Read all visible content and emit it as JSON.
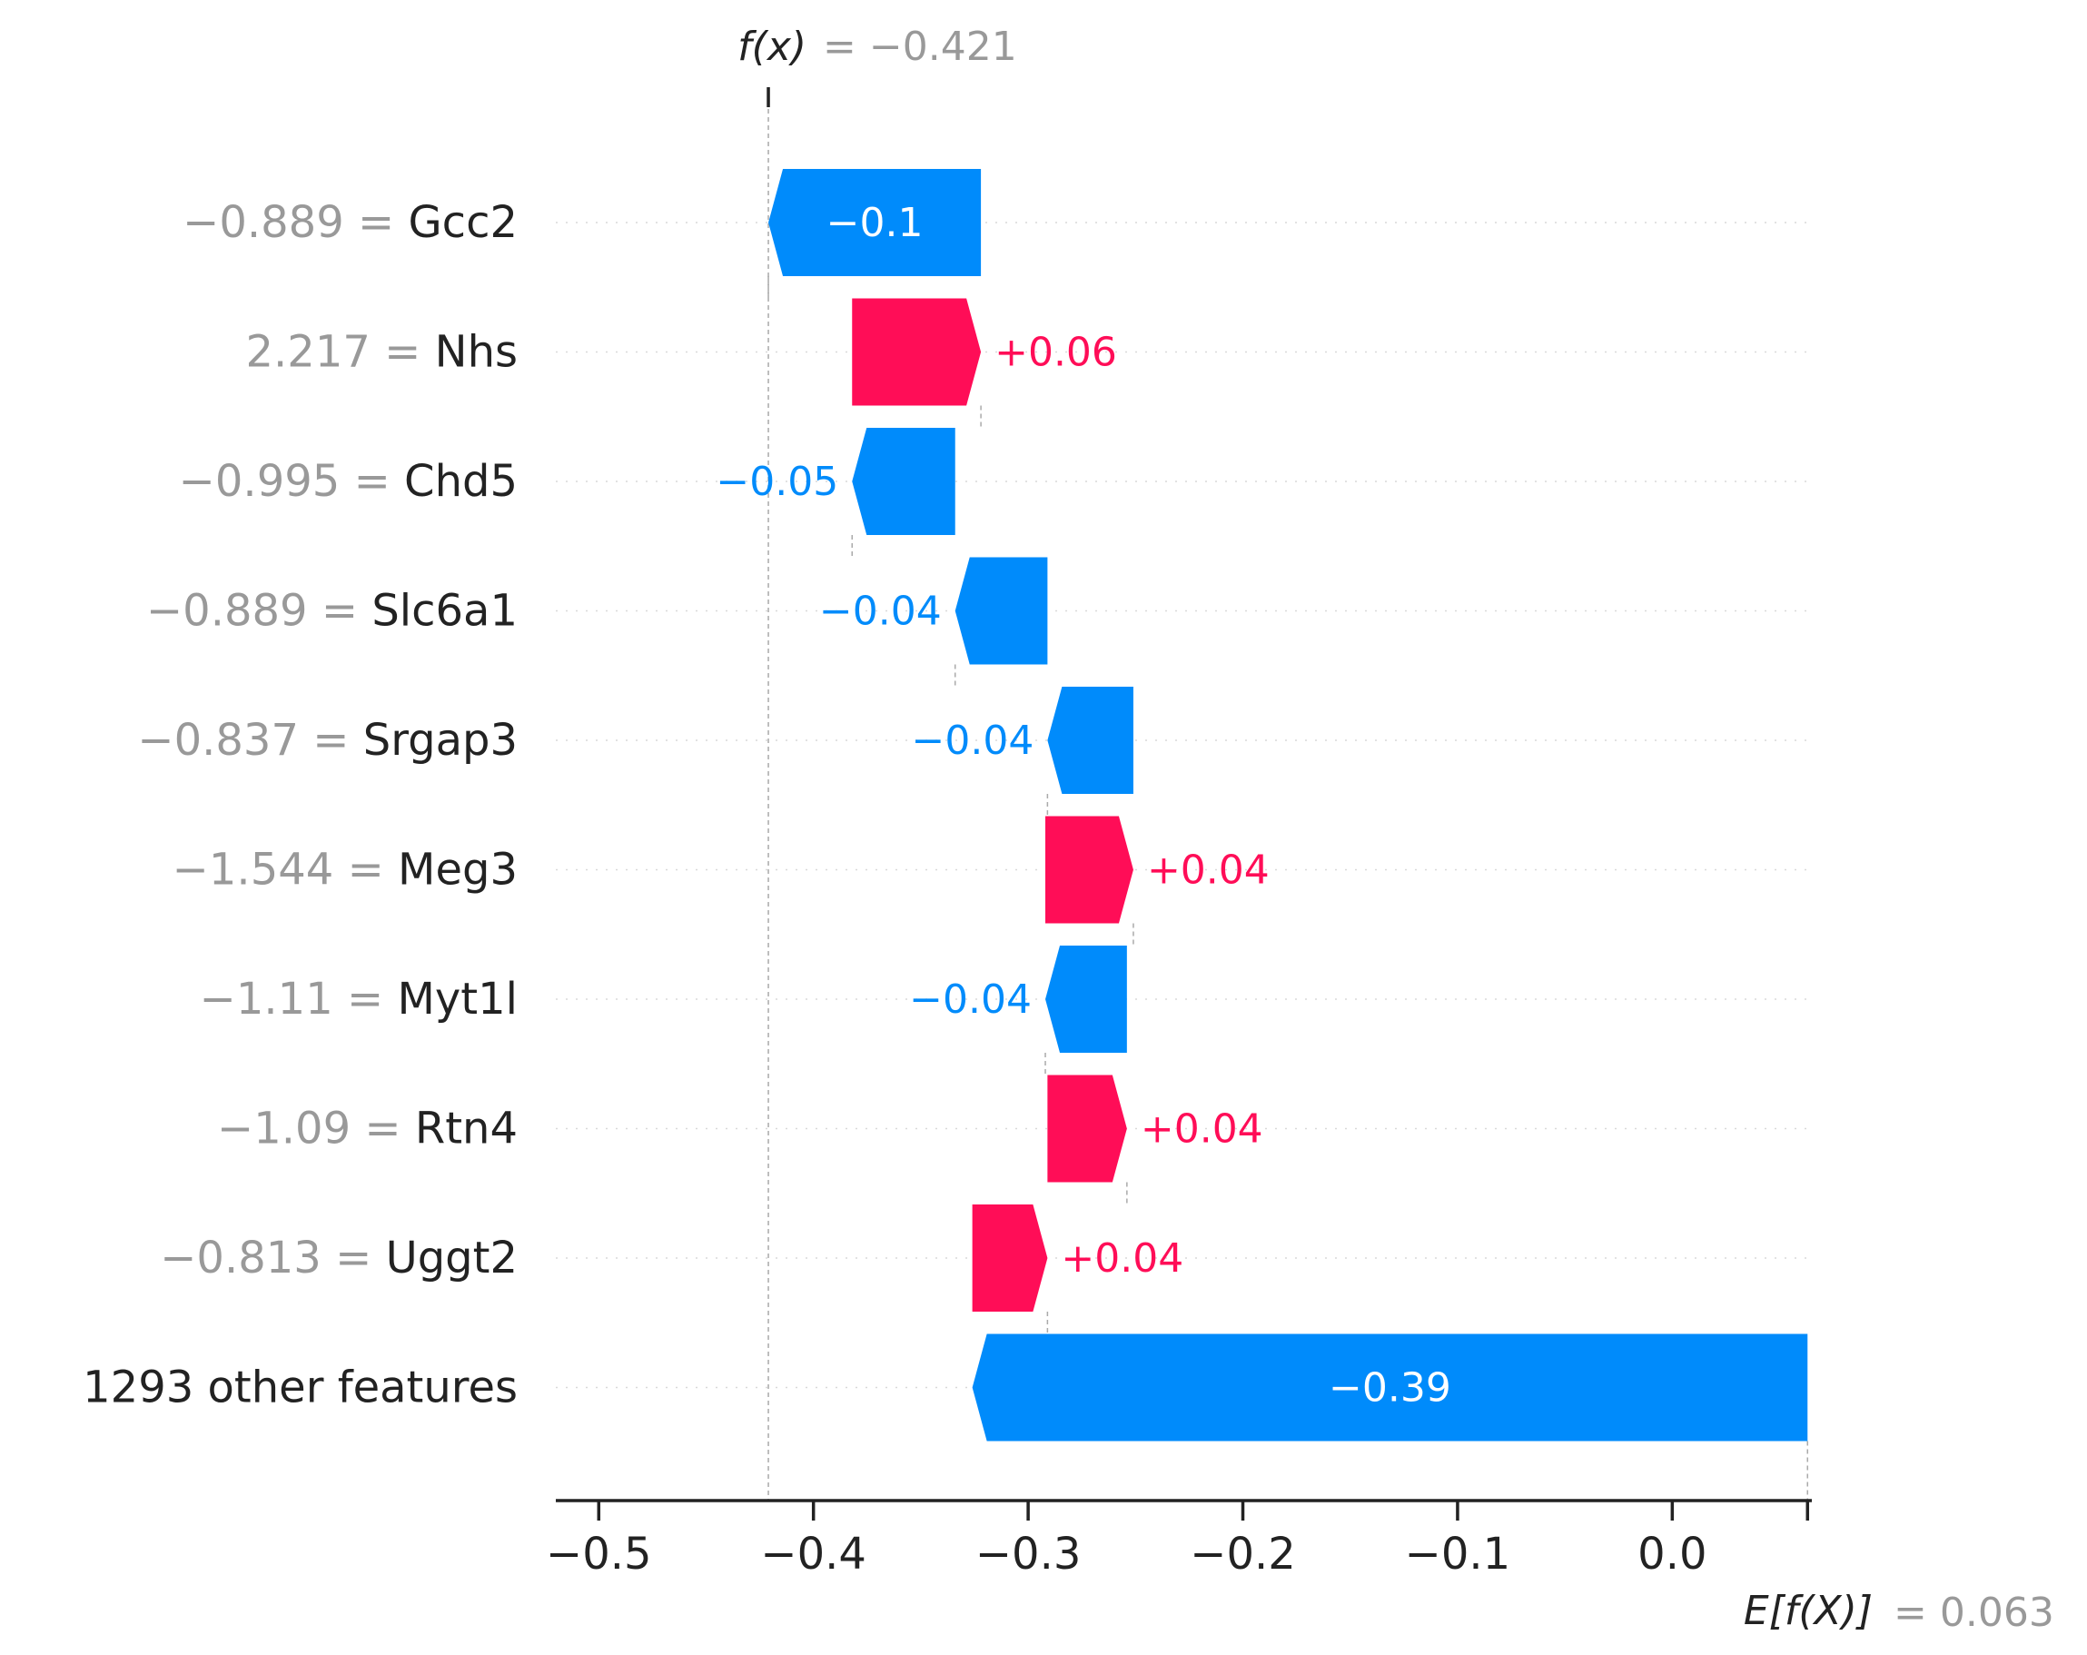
{
  "chart_data": {
    "type": "waterfall",
    "title": "",
    "xlabel": "",
    "ylabel": "",
    "xlim": [
      -0.52,
      0.065
    ],
    "x_ticks": [
      -0.5,
      -0.4,
      -0.3,
      -0.2,
      -0.1,
      0.0
    ],
    "x_tick_labels": [
      "−0.5",
      "−0.4",
      "−0.3",
      "−0.2",
      "−0.1",
      "0.0"
    ],
    "fx": {
      "label": "f(x)",
      "value": -0.421,
      "value_text": "= −0.421"
    },
    "base": {
      "label": "E[f(X)]",
      "value": 0.063,
      "value_text": "= 0.063"
    },
    "features": [
      {
        "value_text": "−0.889 =",
        "name": "Gcc2",
        "start": -0.322,
        "end": -0.421,
        "label": "−0.1",
        "sign": "neg"
      },
      {
        "value_text": "2.217 =",
        "name": "Nhs",
        "start": -0.382,
        "end": -0.322,
        "label": "+0.06",
        "sign": "pos"
      },
      {
        "value_text": "−0.995 =",
        "name": "Chd5",
        "start": -0.334,
        "end": -0.382,
        "label": "−0.05",
        "sign": "neg"
      },
      {
        "value_text": "−0.889 =",
        "name": "Slc6a1",
        "start": -0.291,
        "end": -0.334,
        "label": "−0.04",
        "sign": "neg"
      },
      {
        "value_text": "−0.837 =",
        "name": "Srgap3",
        "start": -0.251,
        "end": -0.291,
        "label": "−0.04",
        "sign": "neg"
      },
      {
        "value_text": "−1.544 =",
        "name": "Meg3",
        "start": -0.292,
        "end": -0.251,
        "label": "+0.04",
        "sign": "pos"
      },
      {
        "value_text": "−1.11 =",
        "name": "Myt1l",
        "start": -0.254,
        "end": -0.292,
        "label": "−0.04",
        "sign": "neg"
      },
      {
        "value_text": "−1.09 =",
        "name": "Rtn4",
        "start": -0.291,
        "end": -0.254,
        "label": "+0.04",
        "sign": "pos"
      },
      {
        "value_text": "−0.813 =",
        "name": "Uggt2",
        "start": -0.326,
        "end": -0.291,
        "label": "+0.04",
        "sign": "pos"
      },
      {
        "value_text": "",
        "name": "1293 other features",
        "start": 0.063,
        "end": -0.326,
        "label": "−0.39",
        "sign": "neg"
      }
    ],
    "colors": {
      "positive": "#ff0d57",
      "negative": "#008bfb",
      "axis": "#222222",
      "muted": "#999999",
      "feature_name": "#222222",
      "gridline": "#d9d9d9",
      "connector": "#aaaaaa"
    },
    "grid": false
  }
}
